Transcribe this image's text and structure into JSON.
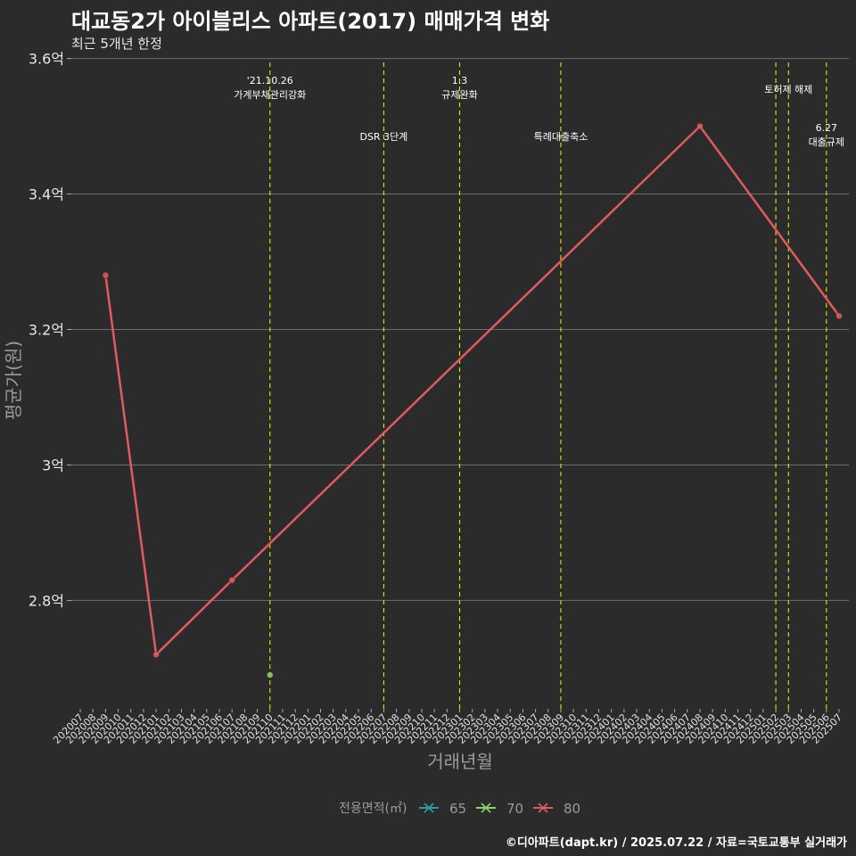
{
  "chart_data": {
    "type": "line",
    "title": "대교동2가 아이블리스 아파트(2017) 매매가격 변화",
    "subtitle": "최근 5개년 한정",
    "xlabel": "거래년월",
    "ylabel": "평균가(원)",
    "caption": "©디아파트(dapt.kr) / 2025.07.22 / 자료=국토교통부 실거래가",
    "ylim": [
      2.64,
      3.61
    ],
    "y_ticks": [
      {
        "value": 2.8,
        "label": "2.8억"
      },
      {
        "value": 3.0,
        "label": "3억"
      },
      {
        "value": 3.2,
        "label": "3.2억"
      },
      {
        "value": 3.4,
        "label": "3.4억"
      },
      {
        "value": 3.6,
        "label": "3.6억"
      }
    ],
    "x_categories": [
      "202007",
      "202008",
      "202009",
      "202010",
      "202011",
      "202012",
      "202101",
      "202102",
      "202103",
      "202104",
      "202105",
      "202106",
      "202107",
      "202108",
      "202109",
      "202110",
      "202111",
      "202112",
      "202201",
      "202202",
      "202203",
      "202204",
      "202205",
      "202206",
      "202207",
      "202208",
      "202209",
      "202210",
      "202211",
      "202212",
      "202301",
      "202302",
      "202303",
      "202304",
      "202305",
      "202306",
      "202307",
      "202308",
      "202309",
      "202310",
      "202311",
      "202312",
      "202401",
      "202402",
      "202403",
      "202404",
      "202405",
      "202406",
      "202407",
      "202408",
      "202409",
      "202410",
      "202411",
      "202412",
      "202501",
      "202502",
      "202503",
      "202504",
      "202505",
      "202506",
      "202507"
    ],
    "legend_title": "전용면적(㎡)",
    "series": [
      {
        "name": "65",
        "color": "#2aa198",
        "points": []
      },
      {
        "name": "70",
        "color": "#8fd16a",
        "points": [
          {
            "x": "202110",
            "y": 2.69
          }
        ]
      },
      {
        "name": "80",
        "color": "#e05a5f",
        "points": [
          {
            "x": "202009",
            "y": 3.28
          },
          {
            "x": "202101",
            "y": 2.72
          },
          {
            "x": "202107",
            "y": 2.83
          },
          {
            "x": "202408",
            "y": 3.5
          },
          {
            "x": "202507",
            "y": 3.22
          }
        ]
      }
    ],
    "events": [
      {
        "x": "202110",
        "label": "'21.10.26\n가계부채관리강화",
        "row": 0
      },
      {
        "x": "202207",
        "label": "DSR 3단계",
        "row": 1
      },
      {
        "x": "202301",
        "label": "1.3\n규제완화",
        "row": 0
      },
      {
        "x": "202309",
        "label": "특례대출축소",
        "row": 1
      },
      {
        "x": "202502",
        "label": "",
        "row": 0
      },
      {
        "x": "202503",
        "label": "토허제 해제",
        "row": 0
      },
      {
        "x": "202506",
        "label": "6.27\n대출규제",
        "row": 1
      }
    ]
  }
}
